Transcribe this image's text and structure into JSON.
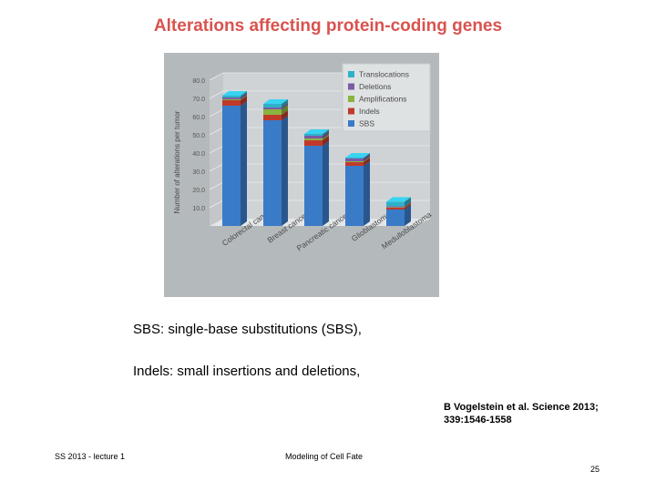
{
  "slide": {
    "title": "Alterations affecting protein-coding genes",
    "line1": "SBS: single-base substitutions (SBS),",
    "line2": "Indels: small insertions and deletions,",
    "reference_line1": "B Vogelstein et al. Science 2013;",
    "reference_line2": "339:1546-1558",
    "footer_left": "SS 2013 - lecture 1",
    "footer_center": "Modeling of Cell Fate",
    "page_number": "25"
  },
  "chart_data": {
    "type": "bar",
    "stacked": true,
    "three_d": true,
    "title": "",
    "xlabel": "",
    "ylabel": "Number of alterations per tumor",
    "ylim": [
      0,
      80
    ],
    "yticks": [
      "10.0",
      "20.0",
      "30.0",
      "40.0",
      "50.0",
      "60.0",
      "70.0",
      "80.0"
    ],
    "categories": [
      "Colorectal cancer",
      "Breast cancer",
      "Pancreatic cancer",
      "Glioblastoma",
      "Medulloblastoma"
    ],
    "series": [
      {
        "name": "SBS",
        "color": "#3a7bc8",
        "values": [
          66,
          58,
          44,
          33,
          9
        ]
      },
      {
        "name": "Indels",
        "color": "#c0392b",
        "values": [
          3,
          3,
          3,
          2,
          1
        ]
      },
      {
        "name": "Amplifications",
        "color": "#8ab43f",
        "values": [
          0.5,
          3,
          1,
          0.5,
          0.3
        ]
      },
      {
        "name": "Deletions",
        "color": "#7b5aa6",
        "values": [
          1,
          1,
          1.5,
          1.5,
          0.5
        ]
      },
      {
        "name": "Translocations",
        "color": "#2fb0c9",
        "values": [
          1,
          2,
          1,
          0.5,
          2.5
        ]
      }
    ],
    "legend": {
      "position": "top-right",
      "order": [
        "Translocations",
        "Deletions",
        "Amplifications",
        "Indels",
        "SBS"
      ]
    },
    "grid": true,
    "background": "#b4b9bb"
  }
}
